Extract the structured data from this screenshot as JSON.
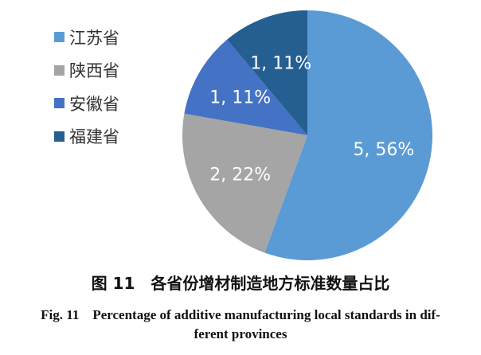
{
  "chart_data": {
    "type": "pie",
    "categories": [
      "江苏省",
      "陕西省",
      "安徽省",
      "福建省"
    ],
    "values": [
      5,
      2,
      1,
      1
    ],
    "percent_labels": [
      "5, 56%",
      "2, 22%",
      "1, 11%",
      "1, 11%"
    ],
    "colors": [
      "#5b9bd5",
      "#a5a5a5",
      "#4472c4",
      "#255e91"
    ],
    "start": "12 o'clock, clockwise",
    "legend_position": "left"
  },
  "caption": {
    "cn": "图 11　各省份增材制造地方标准数量占比",
    "en_line1": "Fig. 11　Percentage of additive manufacturing local standards in dif-",
    "en_line2": "ferent provinces"
  }
}
